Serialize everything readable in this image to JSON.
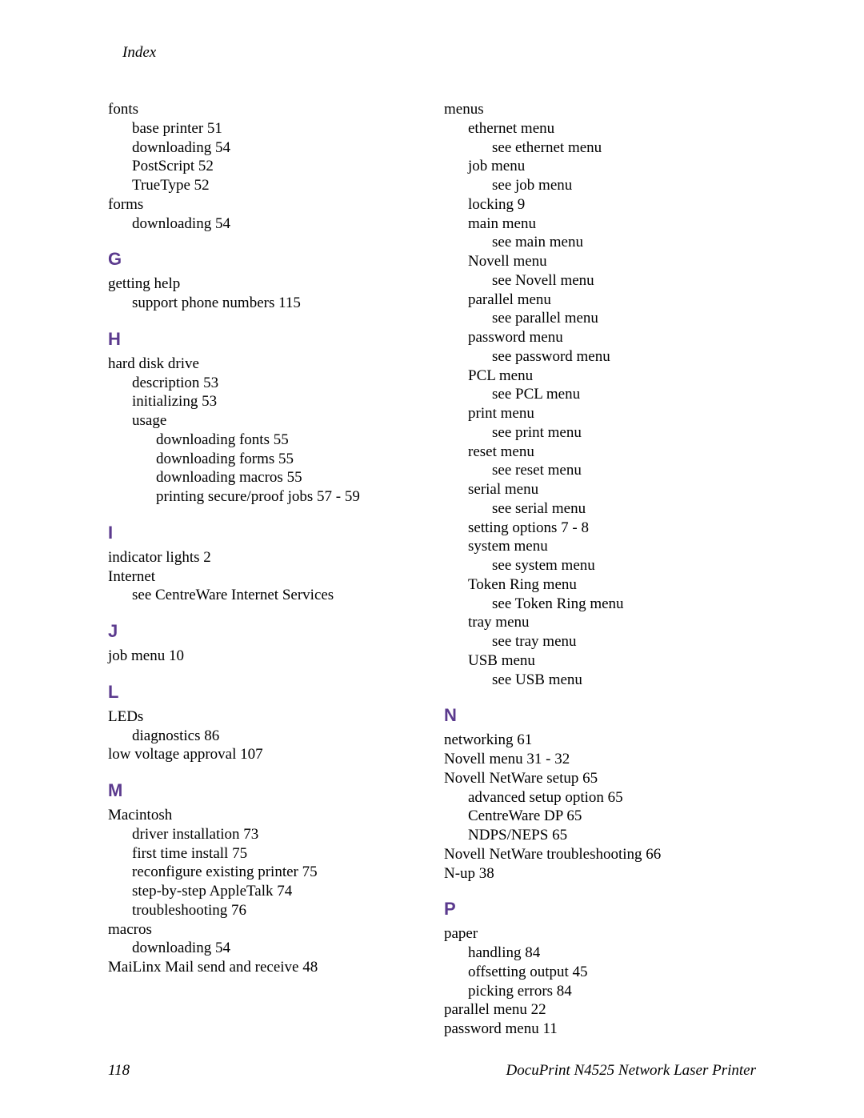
{
  "header": "Index",
  "footer": {
    "page": "118",
    "title": "DocuPrint N4525 Network Laser Printer"
  },
  "colors": {
    "section_letter": "#5b3a8e",
    "text": "#000000",
    "background": "#ffffff"
  },
  "fonts": {
    "body": "Georgia serif",
    "letter": "Arial sans-serif",
    "body_size": 19,
    "letter_size": 22
  },
  "left": [
    {
      "t": "entry",
      "l": 0,
      "text": "fonts"
    },
    {
      "t": "entry",
      "l": 1,
      "text": "base printer  51"
    },
    {
      "t": "entry",
      "l": 1,
      "text": "downloading  54"
    },
    {
      "t": "entry",
      "l": 1,
      "text": "PostScript  52"
    },
    {
      "t": "entry",
      "l": 1,
      "text": "TrueType  52"
    },
    {
      "t": "entry",
      "l": 0,
      "text": "forms"
    },
    {
      "t": "entry",
      "l": 1,
      "text": "downloading  54"
    },
    {
      "t": "letter",
      "text": "G"
    },
    {
      "t": "entry",
      "l": 0,
      "text": "getting help"
    },
    {
      "t": "entry",
      "l": 1,
      "text": "support phone numbers  115"
    },
    {
      "t": "letter",
      "text": "H"
    },
    {
      "t": "entry",
      "l": 0,
      "text": "hard disk drive"
    },
    {
      "t": "entry",
      "l": 1,
      "text": "description  53"
    },
    {
      "t": "entry",
      "l": 1,
      "text": "initializing  53"
    },
    {
      "t": "entry",
      "l": 1,
      "text": "usage"
    },
    {
      "t": "entry",
      "l": 2,
      "text": "downloading fonts  55"
    },
    {
      "t": "entry",
      "l": 2,
      "text": "downloading forms  55"
    },
    {
      "t": "entry",
      "l": 2,
      "text": "downloading macros  55"
    },
    {
      "t": "entry",
      "l": 2,
      "text": "printing secure/proof jobs  57 - 59"
    },
    {
      "t": "letter",
      "text": "I"
    },
    {
      "t": "entry",
      "l": 0,
      "text": "indicator lights  2"
    },
    {
      "t": "entry",
      "l": 0,
      "text": "Internet"
    },
    {
      "t": "entry",
      "l": 1,
      "text": "see CentreWare Internet Services"
    },
    {
      "t": "letter",
      "text": "J"
    },
    {
      "t": "entry",
      "l": 0,
      "text": "job menu  10"
    },
    {
      "t": "letter",
      "text": "L"
    },
    {
      "t": "entry",
      "l": 0,
      "text": "LEDs"
    },
    {
      "t": "entry",
      "l": 1,
      "text": "diagnostics  86"
    },
    {
      "t": "entry",
      "l": 0,
      "text": "low voltage approval  107"
    },
    {
      "t": "letter",
      "text": "M"
    },
    {
      "t": "entry",
      "l": 0,
      "text": "Macintosh"
    },
    {
      "t": "entry",
      "l": 1,
      "text": "driver installation  73"
    },
    {
      "t": "entry",
      "l": 1,
      "text": "first time install  75"
    },
    {
      "t": "entry",
      "l": 1,
      "text": "reconfigure existing printer  75"
    },
    {
      "t": "entry",
      "l": 1,
      "text": "step-by-step AppleTalk  74"
    },
    {
      "t": "entry",
      "l": 1,
      "text": "troubleshooting  76"
    },
    {
      "t": "entry",
      "l": 0,
      "text": "macros"
    },
    {
      "t": "entry",
      "l": 1,
      "text": "downloading  54"
    },
    {
      "t": "entry",
      "l": 0,
      "text": "MaiLinx Mail send and receive  48"
    }
  ],
  "right": [
    {
      "t": "entry",
      "l": 0,
      "text": "menus"
    },
    {
      "t": "entry",
      "l": 1,
      "text": "ethernet menu"
    },
    {
      "t": "entry",
      "l": 2,
      "text": "see ethernet menu"
    },
    {
      "t": "entry",
      "l": 1,
      "text": "job menu"
    },
    {
      "t": "entry",
      "l": 2,
      "text": "see job menu"
    },
    {
      "t": "entry",
      "l": 1,
      "text": "locking  9"
    },
    {
      "t": "entry",
      "l": 1,
      "text": "main menu"
    },
    {
      "t": "entry",
      "l": 2,
      "text": "see main menu"
    },
    {
      "t": "entry",
      "l": 1,
      "text": "Novell menu"
    },
    {
      "t": "entry",
      "l": 2,
      "text": "see Novell menu"
    },
    {
      "t": "entry",
      "l": 1,
      "text": "parallel menu"
    },
    {
      "t": "entry",
      "l": 2,
      "text": "see parallel menu"
    },
    {
      "t": "entry",
      "l": 1,
      "text": "password menu"
    },
    {
      "t": "entry",
      "l": 2,
      "text": "see password menu"
    },
    {
      "t": "entry",
      "l": 1,
      "text": "PCL menu"
    },
    {
      "t": "entry",
      "l": 2,
      "text": "see PCL menu"
    },
    {
      "t": "entry",
      "l": 1,
      "text": "print menu"
    },
    {
      "t": "entry",
      "l": 2,
      "text": "see print menu"
    },
    {
      "t": "entry",
      "l": 1,
      "text": "reset menu"
    },
    {
      "t": "entry",
      "l": 2,
      "text": "see reset menu"
    },
    {
      "t": "entry",
      "l": 1,
      "text": "serial menu"
    },
    {
      "t": "entry",
      "l": 2,
      "text": "see serial menu"
    },
    {
      "t": "entry",
      "l": 1,
      "text": "setting options  7 - 8"
    },
    {
      "t": "entry",
      "l": 1,
      "text": "system menu"
    },
    {
      "t": "entry",
      "l": 2,
      "text": "see system menu"
    },
    {
      "t": "entry",
      "l": 1,
      "text": "Token Ring menu"
    },
    {
      "t": "entry",
      "l": 2,
      "text": "see Token Ring menu"
    },
    {
      "t": "entry",
      "l": 1,
      "text": "tray menu"
    },
    {
      "t": "entry",
      "l": 2,
      "text": "see tray menu"
    },
    {
      "t": "entry",
      "l": 1,
      "text": "USB menu"
    },
    {
      "t": "entry",
      "l": 2,
      "text": "see USB menu"
    },
    {
      "t": "letter",
      "text": "N"
    },
    {
      "t": "entry",
      "l": 0,
      "text": "networking  61"
    },
    {
      "t": "entry",
      "l": 0,
      "text": "Novell menu  31 - 32"
    },
    {
      "t": "entry",
      "l": 0,
      "text": "Novell NetWare setup  65"
    },
    {
      "t": "entry",
      "l": 1,
      "text": "advanced setup option  65"
    },
    {
      "t": "entry",
      "l": 1,
      "text": "CentreWare DP  65"
    },
    {
      "t": "entry",
      "l": 1,
      "text": "NDPS/NEPS  65"
    },
    {
      "t": "entry",
      "l": 0,
      "text": "Novell NetWare troubleshooting  66"
    },
    {
      "t": "entry",
      "l": 0,
      "text": "N-up  38"
    },
    {
      "t": "letter",
      "text": "P"
    },
    {
      "t": "entry",
      "l": 0,
      "text": "paper"
    },
    {
      "t": "entry",
      "l": 1,
      "text": "handling  84"
    },
    {
      "t": "entry",
      "l": 1,
      "text": "offsetting output  45"
    },
    {
      "t": "entry",
      "l": 1,
      "text": "picking errors  84"
    },
    {
      "t": "entry",
      "l": 0,
      "text": "parallel menu  22"
    },
    {
      "t": "entry",
      "l": 0,
      "text": "password menu  11"
    }
  ]
}
